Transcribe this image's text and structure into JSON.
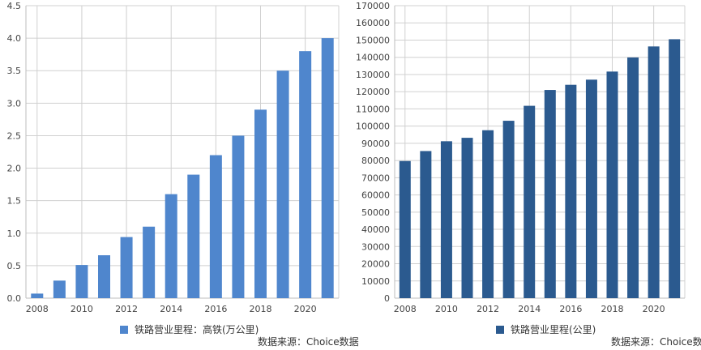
{
  "chart_data": [
    {
      "type": "bar",
      "x": [
        2008,
        2009,
        2010,
        2011,
        2012,
        2013,
        2014,
        2015,
        2016,
        2017,
        2018,
        2019,
        2020,
        2021
      ],
      "series": [
        {
          "name": "铁路营业里程：高铁(万公里)",
          "values": [
            0.07,
            0.27,
            0.51,
            0.66,
            0.94,
            1.1,
            1.6,
            1.9,
            2.2,
            2.5,
            2.9,
            3.5,
            3.8,
            4.0
          ]
        }
      ],
      "xticks": [
        "2008",
        "2010",
        "2012",
        "2014",
        "2016",
        "2018",
        "2020"
      ],
      "yticks": [
        "0.0",
        "0.5",
        "1.0",
        "1.5",
        "2.0",
        "2.5",
        "3.0",
        "3.5",
        "4.0",
        "4.5"
      ],
      "ylim": [
        0,
        4.5
      ],
      "grid": true,
      "legend": "bottom",
      "color": "#4f86cd",
      "source": "数据来源：Choice数据"
    },
    {
      "type": "bar",
      "x": [
        2008,
        2009,
        2010,
        2011,
        2012,
        2013,
        2014,
        2015,
        2016,
        2017,
        2018,
        2019,
        2020,
        2021
      ],
      "series": [
        {
          "name": "铁路营业里程(公里)",
          "values": [
            79700,
            85500,
            91200,
            93200,
            97600,
            103100,
            111800,
            121000,
            124000,
            127000,
            131700,
            139900,
            146300,
            150500
          ]
        }
      ],
      "xticks": [
        "2008",
        "2010",
        "2012",
        "2014",
        "2016",
        "2018",
        "2020"
      ],
      "yticks": [
        "0",
        "10000",
        "20000",
        "30000",
        "40000",
        "50000",
        "60000",
        "70000",
        "80000",
        "90000",
        "100000",
        "110000",
        "120000",
        "130000",
        "140000",
        "150000",
        "160000",
        "170000"
      ],
      "ylim": [
        0,
        170000
      ],
      "grid": true,
      "legend": "bottom",
      "color": "#2b5a8f",
      "source": "数据来源：Choice数据"
    }
  ]
}
